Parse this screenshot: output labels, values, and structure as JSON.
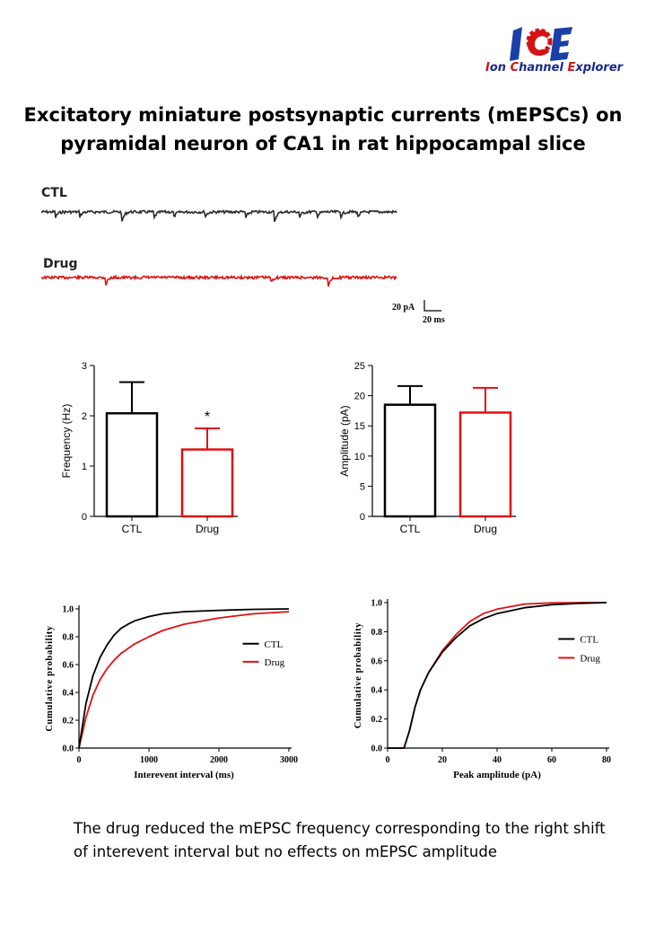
{
  "logo": {
    "letters": "ICE",
    "name_initials": [
      "I",
      "C",
      "E"
    ],
    "name_rest": [
      "on ",
      "hannel ",
      "xplorer"
    ],
    "colors": {
      "blue": "#1a3fa8",
      "red": "#d41414"
    }
  },
  "title": {
    "line1": "Excitatory miniature postsynaptic currents (mEPSCs) on",
    "line2": "pyramidal neuron of CA1 in rat hippocampal slice"
  },
  "traces": {
    "ctl_label": "CTL",
    "drug_label": "Drug",
    "ctl_color": "#2b2b2b",
    "drug_color": "#e01010",
    "scale_bar": {
      "y_label": "20 pA",
      "x_label": "20 ms"
    }
  },
  "footer": {
    "text": "The drug reduced the mEPSC frequency corresponding to the right shift of interevent interval but no effects on mEPSC amplitude"
  },
  "chart_data": [
    {
      "type": "bar",
      "categories": [
        "CTL",
        "Drug"
      ],
      "values": [
        2.05,
        1.33
      ],
      "errors": [
        0.62,
        0.42
      ],
      "colors": [
        "#000000",
        "#e01010"
      ],
      "ylabel": "Frequency (Hz)",
      "ylim": [
        0,
        3
      ],
      "yticks": [
        0,
        1,
        2,
        3
      ],
      "annotation": "*"
    },
    {
      "type": "bar",
      "categories": [
        "CTL",
        "Drug"
      ],
      "values": [
        18.5,
        17.2
      ],
      "errors": [
        3.1,
        4.1
      ],
      "colors": [
        "#000000",
        "#e01010"
      ],
      "ylabel": "Amplitude (pA)",
      "ylim": [
        0,
        25
      ],
      "yticks": [
        0,
        5,
        10,
        15,
        20,
        25
      ]
    },
    {
      "type": "line",
      "xlabel": "Interevent interval (ms)",
      "ylabel": "Cumulative probability",
      "xlim": [
        0,
        3000
      ],
      "ylim": [
        0,
        1
      ],
      "xticks": [
        0,
        1000,
        2000,
        3000
      ],
      "yticks": [
        "0.0",
        "0.2",
        "0.4",
        "0.6",
        "0.8",
        "1.0"
      ],
      "legend": "right",
      "series": [
        {
          "name": "CTL",
          "color": "#000000",
          "x": [
            0,
            100,
            200,
            300,
            400,
            500,
            600,
            700,
            800,
            1000,
            1200,
            1500,
            2000,
            2500,
            3000
          ],
          "y": [
            0,
            0.32,
            0.52,
            0.65,
            0.74,
            0.81,
            0.86,
            0.89,
            0.915,
            0.945,
            0.965,
            0.98,
            0.99,
            0.997,
            1.0
          ]
        },
        {
          "name": "Drug",
          "color": "#e01010",
          "x": [
            0,
            100,
            200,
            300,
            400,
            500,
            600,
            800,
            1000,
            1200,
            1500,
            2000,
            2500,
            3000
          ],
          "y": [
            0,
            0.22,
            0.38,
            0.49,
            0.57,
            0.63,
            0.68,
            0.75,
            0.8,
            0.845,
            0.89,
            0.935,
            0.965,
            0.98
          ]
        }
      ]
    },
    {
      "type": "line",
      "xlabel": "Peak amplitude (pA)",
      "ylabel": "Cumulative probability",
      "xlim": [
        0,
        80
      ],
      "ylim": [
        0,
        1
      ],
      "xticks": [
        0,
        20,
        40,
        60,
        80
      ],
      "yticks": [
        "0.0",
        "0.2",
        "0.4",
        "0.6",
        "0.8",
        "1.0"
      ],
      "legend": "right",
      "series": [
        {
          "name": "CTL",
          "color": "#000000",
          "x": [
            0,
            6,
            8,
            10,
            12,
            15,
            20,
            25,
            30,
            35,
            40,
            50,
            60,
            70,
            80
          ],
          "y": [
            0,
            0,
            0.12,
            0.28,
            0.4,
            0.52,
            0.66,
            0.76,
            0.84,
            0.89,
            0.925,
            0.965,
            0.985,
            0.995,
            1.0
          ]
        },
        {
          "name": "Drug",
          "color": "#e01010",
          "x": [
            0,
            6,
            8,
            10,
            12,
            15,
            20,
            25,
            30,
            35,
            40,
            50,
            60,
            70,
            80
          ],
          "y": [
            0,
            0,
            0.12,
            0.28,
            0.4,
            0.52,
            0.67,
            0.78,
            0.87,
            0.925,
            0.955,
            0.99,
            0.998,
            1.0,
            1.0
          ]
        }
      ]
    }
  ]
}
